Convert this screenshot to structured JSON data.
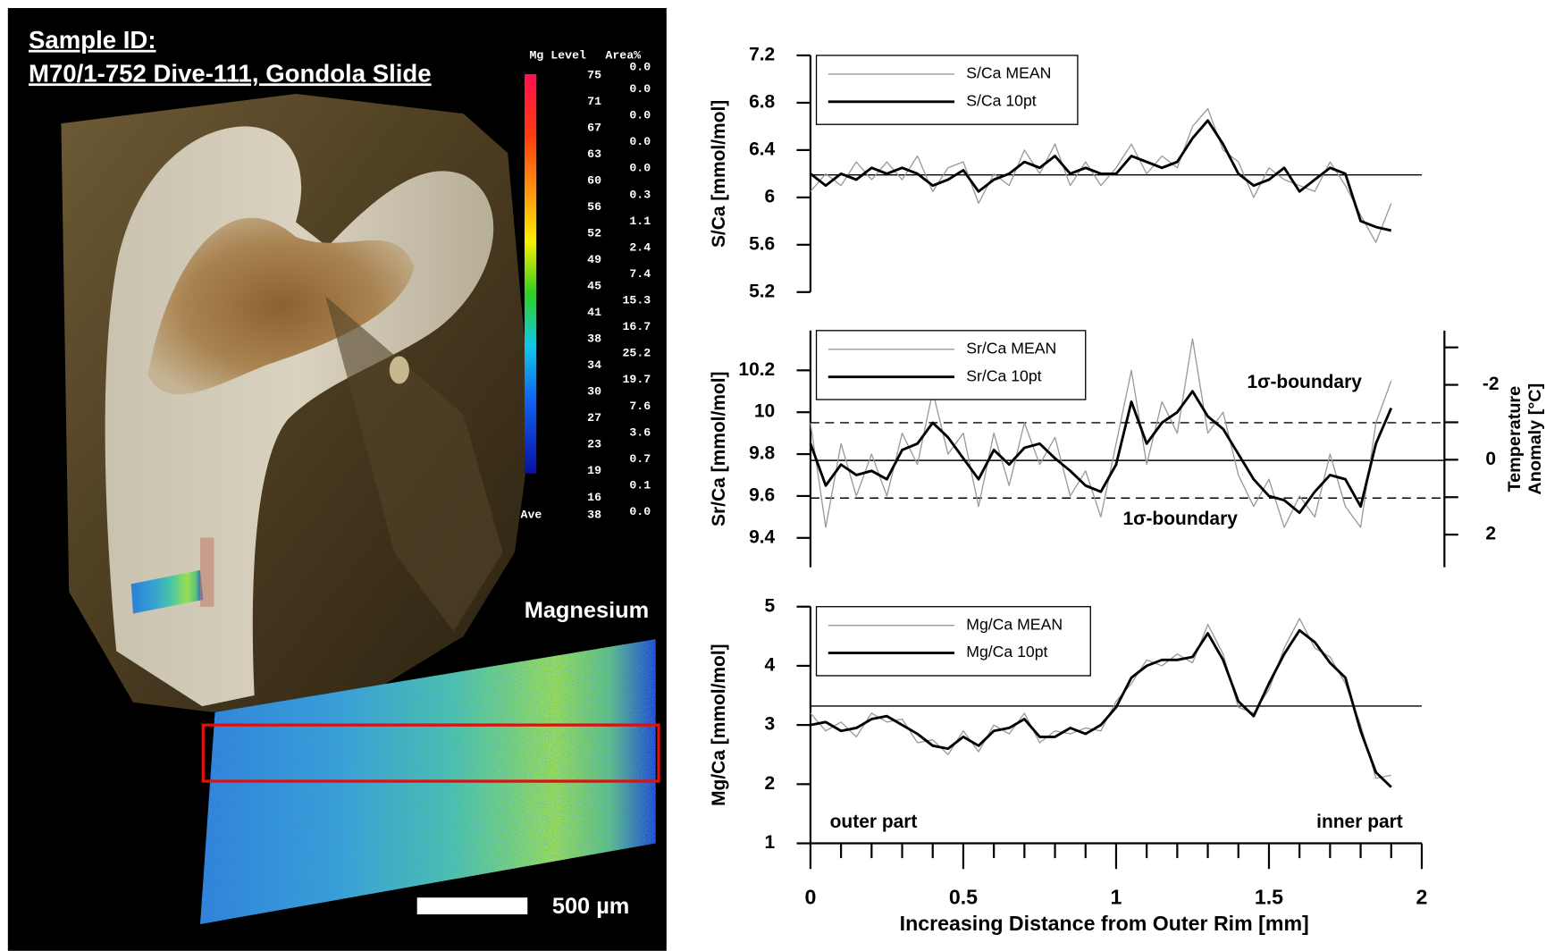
{
  "left_panel": {
    "title_lines": [
      "Sample ID:",
      "M70/1-752 Dive-111, Gondola Slide"
    ],
    "colorbar": {
      "level_header": "Mg Level",
      "area_header": "Area%",
      "levels": [
        75,
        71,
        67,
        63,
        60,
        56,
        52,
        49,
        45,
        41,
        38,
        34,
        30,
        27,
        23,
        19,
        16
      ],
      "areas": [
        "0.0",
        "0.0",
        "0.0",
        "0.0",
        "0.0",
        "0.3",
        "1.1",
        "2.4",
        "7.4",
        "15.3",
        "16.7",
        "25.2",
        "19.7",
        "7.6",
        "3.6",
        "0.7",
        "0.1",
        "0.0"
      ],
      "average_label": "Ave",
      "average": 38
    },
    "map_title": "Magnesium",
    "scale_label": "500 µm"
  },
  "chart_data": [
    {
      "type": "line",
      "ylabel": "S/Ca [mmol/mol]",
      "xlim": [
        0,
        2
      ],
      "ylim": [
        5.2,
        7.2
      ],
      "yticks": [
        5.2,
        5.6,
        6,
        6.4,
        6.8,
        7.2
      ],
      "legend": "upper left",
      "hlines": [
        {
          "value": 6.19,
          "style": "solid"
        }
      ],
      "x": [
        0,
        0.05,
        0.1,
        0.15,
        0.2,
        0.25,
        0.3,
        0.35,
        0.4,
        0.45,
        0.5,
        0.55,
        0.6,
        0.65,
        0.7,
        0.75,
        0.8,
        0.85,
        0.9,
        0.95,
        1,
        1.05,
        1.1,
        1.15,
        1.2,
        1.25,
        1.3,
        1.35,
        1.4,
        1.45,
        1.5,
        1.55,
        1.6,
        1.65,
        1.7,
        1.75,
        1.8,
        1.85,
        1.9
      ],
      "series": [
        {
          "name": "S/Ca MEAN",
          "color": "#999999",
          "values": [
            6.05,
            6.2,
            6.1,
            6.3,
            6.15,
            6.3,
            6.15,
            6.35,
            6.05,
            6.25,
            6.3,
            5.95,
            6.2,
            6.1,
            6.4,
            6.2,
            6.45,
            6.1,
            6.3,
            6.1,
            6.25,
            6.45,
            6.2,
            6.35,
            6.25,
            6.6,
            6.75,
            6.4,
            6.3,
            6.0,
            6.25,
            6.15,
            6.1,
            6.05,
            6.3,
            6.1,
            5.85,
            5.62,
            5.95
          ]
        },
        {
          "name": "S/Ca 10pt",
          "color": "#000000",
          "values": [
            6.2,
            6.1,
            6.2,
            6.15,
            6.25,
            6.2,
            6.25,
            6.2,
            6.1,
            6.15,
            6.23,
            6.05,
            6.15,
            6.2,
            6.3,
            6.25,
            6.35,
            6.2,
            6.25,
            6.2,
            6.2,
            6.35,
            6.3,
            6.25,
            6.3,
            6.5,
            6.65,
            6.45,
            6.2,
            6.1,
            6.15,
            6.25,
            6.05,
            6.15,
            6.25,
            6.2,
            5.8,
            5.75,
            5.72
          ]
        }
      ]
    },
    {
      "type": "line",
      "ylabel": "Sr/Ca [mmol/mol]",
      "xlim": [
        0,
        2
      ],
      "ylim": [
        9.26,
        10.39
      ],
      "yticks": [
        9.4,
        9.6,
        9.8,
        10,
        10.2
      ],
      "y2label_lines": [
        "Temperature",
        "Anomaly [°C]"
      ],
      "y2lim": [
        2.87,
        -3.45
      ],
      "y2ticks": [
        -2,
        0,
        2
      ],
      "y2minor_ticks": [
        -3,
        -1,
        1
      ],
      "legend": "upper left",
      "hlines": [
        {
          "value": 9.77,
          "style": "solid"
        },
        {
          "value": 9.95,
          "style": "dashed"
        },
        {
          "value": 9.59,
          "style": "dashed"
        }
      ],
      "annotations": [
        "1σ-boundary",
        "1σ-boundary"
      ],
      "x": [
        0,
        0.05,
        0.1,
        0.15,
        0.2,
        0.25,
        0.3,
        0.35,
        0.4,
        0.45,
        0.5,
        0.55,
        0.6,
        0.65,
        0.7,
        0.75,
        0.8,
        0.85,
        0.9,
        0.95,
        1,
        1.05,
        1.1,
        1.15,
        1.2,
        1.25,
        1.3,
        1.35,
        1.4,
        1.45,
        1.5,
        1.55,
        1.6,
        1.65,
        1.7,
        1.75,
        1.8,
        1.85,
        1.9
      ],
      "series": [
        {
          "name": "Sr/Ca MEAN",
          "color": "#999999",
          "values": [
            9.95,
            9.45,
            9.85,
            9.6,
            9.8,
            9.6,
            9.9,
            9.75,
            10.1,
            9.8,
            9.9,
            9.55,
            9.9,
            9.65,
            9.95,
            9.75,
            9.88,
            9.6,
            9.72,
            9.5,
            9.85,
            10.2,
            9.75,
            10.05,
            9.9,
            10.35,
            9.9,
            10.0,
            9.7,
            9.55,
            9.68,
            9.45,
            9.6,
            9.5,
            9.8,
            9.55,
            9.45,
            9.95,
            10.15
          ]
        },
        {
          "name": "Sr/Ca 10pt",
          "color": "#000000",
          "values": [
            9.85,
            9.65,
            9.75,
            9.7,
            9.72,
            9.68,
            9.82,
            9.85,
            9.95,
            9.88,
            9.78,
            9.68,
            9.82,
            9.75,
            9.83,
            9.85,
            9.78,
            9.72,
            9.65,
            9.62,
            9.75,
            10.05,
            9.85,
            9.95,
            10.0,
            10.1,
            9.98,
            9.92,
            9.8,
            9.68,
            9.6,
            9.58,
            9.52,
            9.62,
            9.7,
            9.68,
            9.55,
            9.85,
            10.02
          ]
        }
      ]
    },
    {
      "type": "line",
      "ylabel": "Mg/Ca [mmol/mol]",
      "xlabel": "Increasing Distance from Outer Rim [mm]",
      "xlim": [
        0,
        2
      ],
      "xticks": [
        0,
        0.5,
        1,
        1.5,
        2
      ],
      "xminor_ticks": [
        0.1,
        0.2,
        0.3,
        0.4,
        0.6,
        0.7,
        0.8,
        0.9,
        1.1,
        1.2,
        1.3,
        1.4,
        1.6,
        1.7,
        1.8,
        1.9
      ],
      "ylim": [
        1,
        5
      ],
      "yticks": [
        1,
        2,
        3,
        4,
        5
      ],
      "legend": "upper left",
      "hlines": [
        {
          "value": 3.32,
          "style": "solid"
        }
      ],
      "annotations": [
        "outer part",
        "inner part"
      ],
      "x": [
        0,
        0.05,
        0.1,
        0.15,
        0.2,
        0.25,
        0.3,
        0.35,
        0.4,
        0.45,
        0.5,
        0.55,
        0.6,
        0.65,
        0.7,
        0.75,
        0.8,
        0.85,
        0.9,
        0.95,
        1,
        1.05,
        1.1,
        1.15,
        1.2,
        1.25,
        1.3,
        1.35,
        1.4,
        1.45,
        1.5,
        1.55,
        1.6,
        1.65,
        1.7,
        1.75,
        1.8,
        1.85,
        1.9
      ],
      "series": [
        {
          "name": "Mg/Ca MEAN",
          "color": "#999999",
          "values": [
            3.2,
            2.9,
            3.05,
            2.8,
            3.2,
            3.05,
            3.1,
            2.7,
            2.75,
            2.5,
            2.9,
            2.55,
            3.0,
            2.85,
            3.2,
            2.7,
            2.9,
            2.85,
            2.95,
            2.9,
            3.4,
            3.7,
            4.1,
            4.0,
            4.2,
            4.05,
            4.7,
            4.2,
            3.3,
            3.2,
            3.6,
            4.3,
            4.8,
            4.3,
            4.15,
            3.7,
            3.0,
            2.1,
            2.15
          ]
        },
        {
          "name": "Mg/Ca 10pt",
          "color": "#000000",
          "values": [
            3.0,
            3.05,
            2.9,
            2.95,
            3.1,
            3.15,
            3.0,
            2.85,
            2.65,
            2.6,
            2.8,
            2.65,
            2.9,
            2.95,
            3.1,
            2.8,
            2.8,
            2.95,
            2.85,
            3.0,
            3.3,
            3.8,
            4.0,
            4.1,
            4.1,
            4.15,
            4.55,
            4.1,
            3.4,
            3.15,
            3.7,
            4.2,
            4.6,
            4.4,
            4.05,
            3.8,
            2.9,
            2.2,
            1.95
          ]
        }
      ]
    }
  ]
}
